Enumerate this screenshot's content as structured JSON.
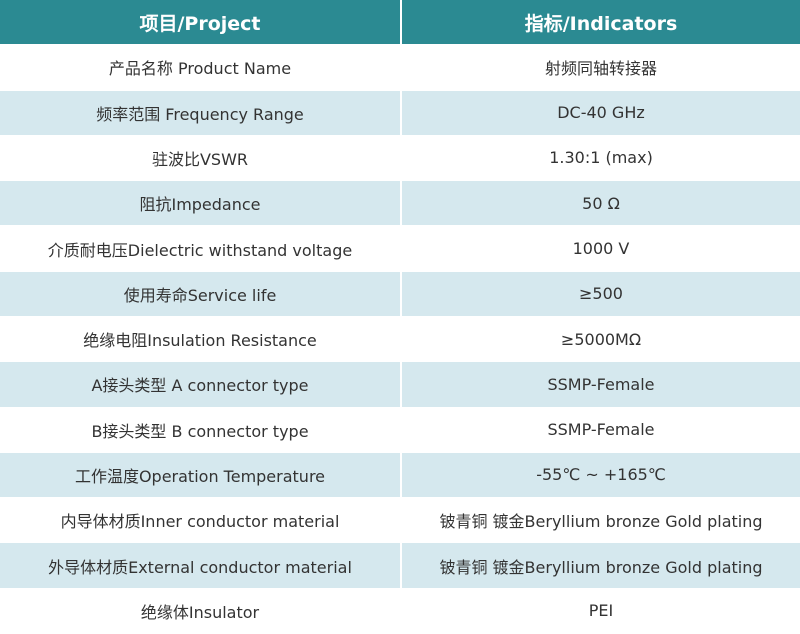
{
  "table": {
    "header": [
      "项目/Project",
      "指标/Indicators"
    ],
    "rows": [
      [
        "产品名称 Product Name",
        "射频同轴转接器"
      ],
      [
        "频率范围 Frequency Range",
        "DC-40 GHz"
      ],
      [
        "驻波比VSWR",
        "1.30:1 (max)"
      ],
      [
        "阻抗Impedance",
        "50 Ω"
      ],
      [
        "介质耐电压Dielectric withstand voltage",
        "1000 V"
      ],
      [
        "使用寿命Service life",
        "≥500"
      ],
      [
        "绝缘电阻Insulation Resistance",
        "≥5000MΩ"
      ],
      [
        "A接头类型 A connector type",
        "SSMP-Female"
      ],
      [
        "B接头类型 B connector type",
        "SSMP-Female"
      ],
      [
        "工作温度Operation Temperature",
        "-55℃ ~ +165℃"
      ],
      [
        "内导体材质Inner conductor material",
        "铍青铜 镀金Beryllium bronze Gold plating"
      ],
      [
        "外导体材质External conductor material",
        "铍青铜 镀金Beryllium bronze Gold plating"
      ],
      [
        "绝缘体Insulator",
        "PEI"
      ]
    ]
  }
}
